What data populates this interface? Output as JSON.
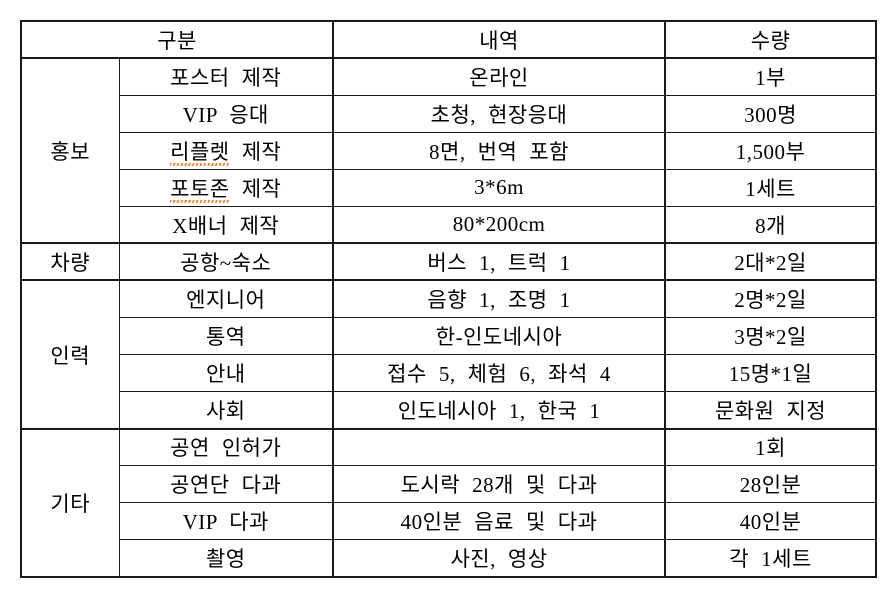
{
  "page": {
    "background_color": "#ffffff",
    "text_color": "#000000",
    "border_color": "#1a1a1a",
    "misspell_underline_color": "#ff7a1a"
  },
  "table": {
    "header": {
      "col_category": "구분",
      "col_detail": "내역",
      "col_qty": "수량"
    },
    "groups": [
      {
        "label": "홍보",
        "rows": [
          {
            "item": "포스터 제작",
            "detail": "온라인",
            "qty": "1부"
          },
          {
            "item": "VIP 응대",
            "detail": "초청, 현장응대",
            "qty": "300명"
          },
          {
            "item": "리플렛 제작",
            "item_marked": "리플렛",
            "detail": "8면, 번역 포함",
            "qty": "1,500부"
          },
          {
            "item": "포토존 제작",
            "item_marked": "포토존",
            "detail": "3*6m",
            "qty": "1세트"
          },
          {
            "item": "X배너 제작",
            "detail": "80*200cm",
            "qty": "8개"
          }
        ]
      },
      {
        "label": "차량",
        "rows": [
          {
            "item": "공항~숙소",
            "detail": "버스 1, 트럭 1",
            "qty": "2대*2일"
          }
        ]
      },
      {
        "label": "인력",
        "rows": [
          {
            "item": "엔지니어",
            "detail": "음향 1, 조명 1",
            "qty": "2명*2일"
          },
          {
            "item": "통역",
            "detail": "한-인도네시아",
            "qty": "3명*2일"
          },
          {
            "item": "안내",
            "detail": "접수 5, 체험 6, 좌석 4",
            "qty": "15명*1일"
          },
          {
            "item": "사회",
            "detail": "인도네시아 1, 한국 1",
            "qty": "문화원 지정"
          }
        ]
      },
      {
        "label": "기타",
        "rows": [
          {
            "item": "공연 인허가",
            "detail": "",
            "qty": "1회"
          },
          {
            "item": "공연단 다과",
            "detail": "도시락 28개 및 다과",
            "qty": "28인분"
          },
          {
            "item": "VIP 다과",
            "detail": "40인분 음료 및 다과",
            "qty": "40인분"
          },
          {
            "item": "촬영",
            "detail": "사진, 영상",
            "qty": "각 1세트"
          }
        ]
      }
    ]
  }
}
